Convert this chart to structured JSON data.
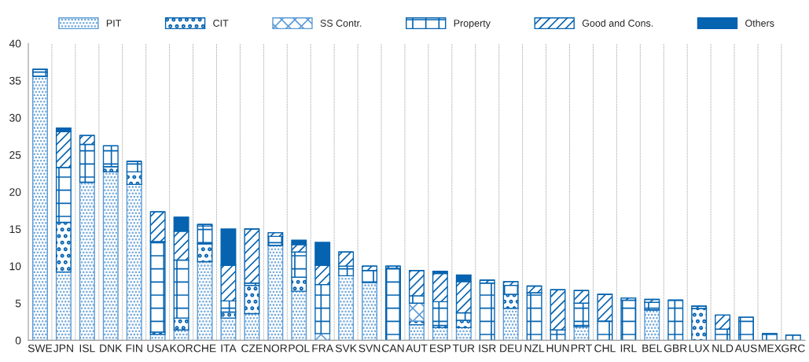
{
  "chart_data": {
    "type": "bar",
    "stacked": true,
    "categories": [
      "SWE",
      "JPN",
      "ISL",
      "DNK",
      "FIN",
      "USA",
      "KOR",
      "CHE",
      "ITA",
      "CZE",
      "NOR",
      "POL",
      "FRA",
      "SVK",
      "SVN",
      "CAN",
      "AUT",
      "ESP",
      "TUR",
      "ISR",
      "DEU",
      "NZL",
      "HUN",
      "PRT",
      "CHL",
      "IRL",
      "BEL",
      "GBR",
      "LUX",
      "NLD",
      "AUS",
      "MEX",
      "GRC"
    ],
    "series": [
      {
        "name": "PIT",
        "color": "#5b9bd5",
        "values": [
          35.6,
          9.2,
          21.3,
          22.7,
          21.0,
          0.8,
          1.4,
          10.6,
          3.0,
          3.6,
          12.8,
          6.6,
          0,
          8.7,
          7.8,
          0,
          2.1,
          1.7,
          1.7,
          0,
          4.3,
          0,
          0,
          1.8,
          0,
          0,
          4.1,
          0,
          0,
          0,
          0,
          0,
          0
        ]
      },
      {
        "name": "CIT",
        "color": "#0563b0",
        "values": [
          0,
          6.7,
          0,
          0.7,
          1.7,
          0.3,
          1.6,
          2.4,
          0.8,
          3.8,
          0,
          1.9,
          0,
          0,
          0,
          0,
          0.5,
          0.3,
          1.0,
          0,
          1.9,
          0,
          0,
          0.2,
          0,
          0,
          0,
          0,
          4.3,
          0,
          0,
          0,
          0
        ]
      },
      {
        "name": "SS Contr.",
        "color": "#5b9bd5",
        "values": [
          0,
          0,
          0,
          0,
          0,
          0,
          0,
          0,
          0,
          0,
          0,
          0,
          0.9,
          0,
          0,
          0,
          2.4,
          0,
          0,
          0,
          0,
          0,
          0,
          0,
          0,
          0,
          0,
          0,
          0,
          0,
          0,
          0,
          0
        ]
      },
      {
        "name": "Property",
        "color": "#0563b0",
        "values": [
          0.9,
          7.4,
          5.1,
          2.8,
          1.4,
          12.2,
          7.8,
          2.4,
          1.5,
          0.3,
          1.2,
          3.4,
          6.6,
          1.3,
          1.6,
          9.7,
          1.0,
          3.2,
          1.0,
          7.7,
          1.2,
          6.4,
          1.4,
          3.0,
          2.6,
          5.4,
          1.0,
          5.4,
          0,
          1.5,
          3.1,
          0.9,
          0.7
        ]
      },
      {
        "name": "Good and Cons.",
        "color": "#0563b0",
        "values": [
          0,
          4.8,
          1.2,
          0,
          0,
          4.0,
          3.9,
          0.2,
          4.8,
          7.3,
          0.5,
          1.0,
          2.6,
          1.9,
          0.6,
          0.3,
          3.4,
          3.8,
          4.2,
          0.4,
          0.5,
          0.9,
          5.4,
          1.7,
          3.6,
          0.3,
          0.4,
          0,
          0.3,
          1.9,
          null,
          null,
          null
        ]
      },
      {
        "name": "Others",
        "color": "#0563b0",
        "values": [
          0,
          0.5,
          0,
          0,
          0,
          0,
          1.9,
          0,
          4.9,
          0,
          0,
          0.6,
          3.1,
          0,
          0,
          0,
          0,
          0.3,
          0.9,
          0,
          0,
          0,
          0,
          0,
          0,
          0,
          0,
          0,
          0,
          0,
          0,
          0,
          0
        ]
      }
    ],
    "ylim": [
      0,
      40
    ],
    "yticks": [
      0,
      5,
      10,
      15,
      20,
      25,
      30,
      35,
      40
    ],
    "grid": "x",
    "legend": "top"
  }
}
